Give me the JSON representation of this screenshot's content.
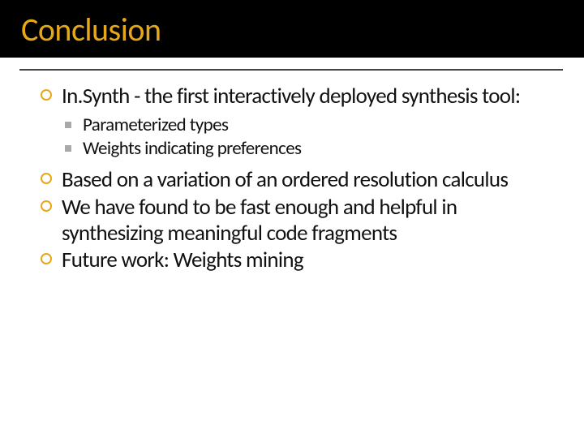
{
  "slide": {
    "title": "Conclusion",
    "title_color": "#e6a817",
    "title_bg": "#000000",
    "background": "#ffffff",
    "underline_color": "#444444",
    "bullet_l1_color": "#e6a817",
    "bullet_l2_color": "#a9a9a9",
    "font_family": "Corbel",
    "title_fontsize": 40,
    "l1_fontsize": 27,
    "l2_fontsize": 23,
    "items": [
      {
        "text": "In.Synth - the first interactively deployed synthesis tool:",
        "children": [
          {
            "text": "Parameterized types"
          },
          {
            "text": "Weights indicating preferences"
          }
        ]
      },
      {
        "text": "Based on a variation of an ordered resolution calculus"
      },
      {
        "text": "We have found to be fast enough and helpful in synthesizing meaningful code fragments"
      },
      {
        "text": "Future work: Weights mining"
      }
    ]
  }
}
